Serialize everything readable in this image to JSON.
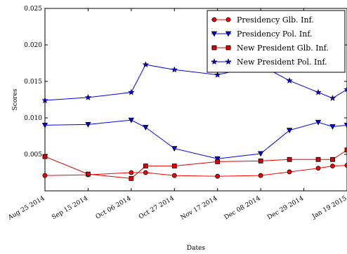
{
  "chart_data": {
    "type": "line",
    "xlabel": "Dates",
    "ylabel": "Scores",
    "ylim": [
      0.0,
      0.025
    ],
    "yticks": [
      "0.005",
      "0.010",
      "0.015",
      "0.020",
      "0.025"
    ],
    "x": [
      "Aug 25 2014",
      "Sep 01 2014",
      "Sep 15 2014",
      "Sep 29 2014",
      "Oct 06 2014",
      "Oct 13 2014",
      "Oct 20 2014",
      "Oct 27 2014",
      "Nov 03 2014",
      "Nov 10 2014",
      "Nov 17 2014",
      "Nov 24 2014",
      "Dec 01 2014",
      "Dec 08 2014",
      "Dec 15 2014",
      "Dec 22 2014",
      "Dec 29 2014",
      "Jan 05 2015",
      "Jan 12 2015",
      "Jan 19 2015"
    ],
    "xticks": [
      "Aug 25 2014",
      "Sep 15 2014",
      "Oct 06 2014",
      "Oct 27 2014",
      "Nov 17 2014",
      "Dec 08 2014",
      "Dec 29 2014",
      "Jan 19 2015"
    ],
    "legend_position": "top-right",
    "grid": false,
    "series": [
      {
        "name": "Presidency Glb. Inf.",
        "color": "#ff0000",
        "marker": "circle",
        "points": [
          [
            "Aug 25 2014",
            0.0021
          ],
          [
            "Sep 15 2014",
            0.0022
          ],
          [
            "Oct 06 2014",
            0.0025
          ],
          [
            "Oct 13 2014",
            0.0025
          ],
          [
            "Oct 27 2014",
            0.0021
          ],
          [
            "Nov 17 2014",
            0.002
          ],
          [
            "Dec 08 2014",
            0.0021
          ],
          [
            "Dec 22 2014",
            0.0026
          ],
          [
            "Jan 05 2015",
            0.0031
          ],
          [
            "Jan 12 2015",
            0.0034
          ],
          [
            "Jan 19 2015",
            0.0035
          ]
        ]
      },
      {
        "name": "Presidency Pol. Inf.",
        "color": "#0000ff",
        "marker": "triangle-down",
        "points": [
          [
            "Aug 25 2014",
            0.009
          ],
          [
            "Sep 15 2014",
            0.0091
          ],
          [
            "Oct 06 2014",
            0.0097
          ],
          [
            "Oct 13 2014",
            0.0087
          ],
          [
            "Oct 27 2014",
            0.0058
          ],
          [
            "Nov 17 2014",
            0.0044
          ],
          [
            "Dec 08 2014",
            0.0051
          ],
          [
            "Dec 22 2014",
            0.0083
          ],
          [
            "Jan 05 2015",
            0.0094
          ],
          [
            "Jan 12 2015",
            0.0088
          ],
          [
            "Jan 19 2015",
            0.009
          ]
        ]
      },
      {
        "name": "New President Glb. Inf.",
        "color": "#e00000",
        "marker": "square",
        "points": [
          [
            "Aug 25 2014",
            0.0047
          ],
          [
            "Sep 15 2014",
            0.0023
          ],
          [
            "Oct 06 2014",
            0.0017
          ],
          [
            "Oct 13 2014",
            0.0034
          ],
          [
            "Oct 27 2014",
            0.0034
          ],
          [
            "Nov 17 2014",
            0.004
          ],
          [
            "Dec 08 2014",
            0.0041
          ],
          [
            "Dec 22 2014",
            0.0043
          ],
          [
            "Jan 05 2015",
            0.0043
          ],
          [
            "Jan 12 2015",
            0.0043
          ],
          [
            "Jan 19 2015",
            0.0056
          ]
        ]
      },
      {
        "name": "New President Pol. Inf.",
        "color": "#0000ff",
        "marker": "star",
        "points": [
          [
            "Aug 25 2014",
            0.0124
          ],
          [
            "Sep 15 2014",
            0.0128
          ],
          [
            "Oct 06 2014",
            0.0135
          ],
          [
            "Oct 13 2014",
            0.0173
          ],
          [
            "Oct 27 2014",
            0.0166
          ],
          [
            "Nov 17 2014",
            0.0159
          ],
          [
            "Dec 08 2014",
            0.0172
          ],
          [
            "Dec 22 2014",
            0.0151
          ],
          [
            "Jan 05 2015",
            0.0135
          ],
          [
            "Jan 12 2015",
            0.0127
          ],
          [
            "Jan 19 2015",
            0.0139
          ]
        ]
      }
    ]
  }
}
